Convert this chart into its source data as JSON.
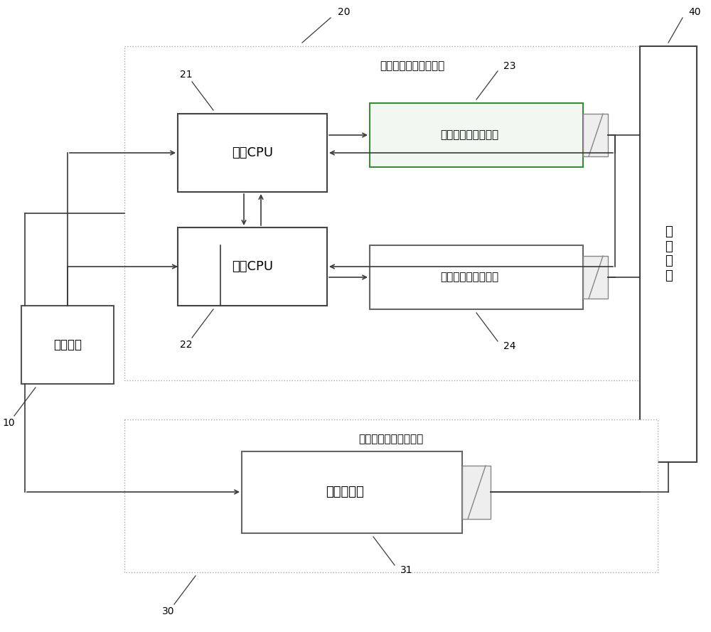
{
  "bg_color": "#ffffff",
  "line_color": "#3a3a3a",
  "box_border_color": "#666666",
  "green_border": "#3a8a3a",
  "thin_border": "#aaaaaa",
  "labels": {
    "eStop_btn": "急停按钮",
    "first_recv": "第一急停信号接收单元",
    "second_recv": "第二急停信号接收单元",
    "cpu1": "第一CPU",
    "cpu2": "第二CPU",
    "relay1": "第一强制导向继电器",
    "relay2": "第二强制导向继电器",
    "delay_relay": "延时继电器",
    "control": "控\n制\n单\n元"
  },
  "ref_nums": {
    "n10": "10",
    "n20": "20",
    "n21": "21",
    "n22": "22",
    "n23": "23",
    "n24": "24",
    "n30": "30",
    "n31": "31",
    "n40": "40"
  },
  "font_size_label": 12,
  "font_size_small": 10,
  "font_size_ref": 10
}
